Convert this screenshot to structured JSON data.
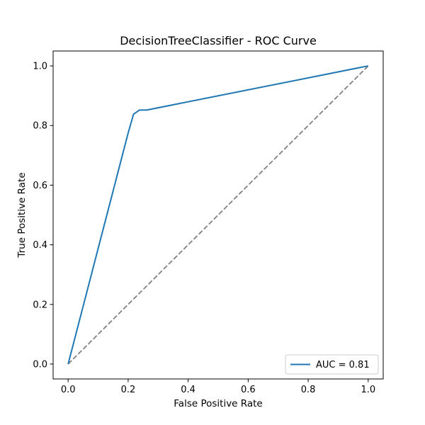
{
  "chart_data": {
    "type": "line",
    "title": "DecisionTreeClassifier - ROC Curve",
    "xlabel": "False Positive Rate",
    "ylabel": "True Positive Rate",
    "xlim": [
      -0.05,
      1.05
    ],
    "ylim": [
      -0.05,
      1.05
    ],
    "xticks": [
      0.0,
      0.2,
      0.4,
      0.6,
      0.8,
      1.0
    ],
    "yticks": [
      0.0,
      0.2,
      0.4,
      0.6,
      0.8,
      1.0
    ],
    "xtick_labels": [
      "0.0",
      "0.2",
      "0.4",
      "0.6",
      "0.8",
      "1.0"
    ],
    "ytick_labels": [
      "0.0",
      "0.2",
      "0.4",
      "0.6",
      "0.8",
      "1.0"
    ],
    "grid": false,
    "legend_position": "lower-right",
    "series": [
      {
        "name": "AUC = 0.81",
        "color": "#1f77b4",
        "style": "solid",
        "x": [
          0.0,
          0.2,
          0.218,
          0.238,
          0.262,
          1.0
        ],
        "y": [
          0.0,
          0.775,
          0.838,
          0.852,
          0.852,
          1.0
        ]
      },
      {
        "color": "#808080",
        "style": "dashed",
        "x": [
          0.0,
          1.0
        ],
        "y": [
          0.0,
          1.0
        ]
      }
    ]
  }
}
